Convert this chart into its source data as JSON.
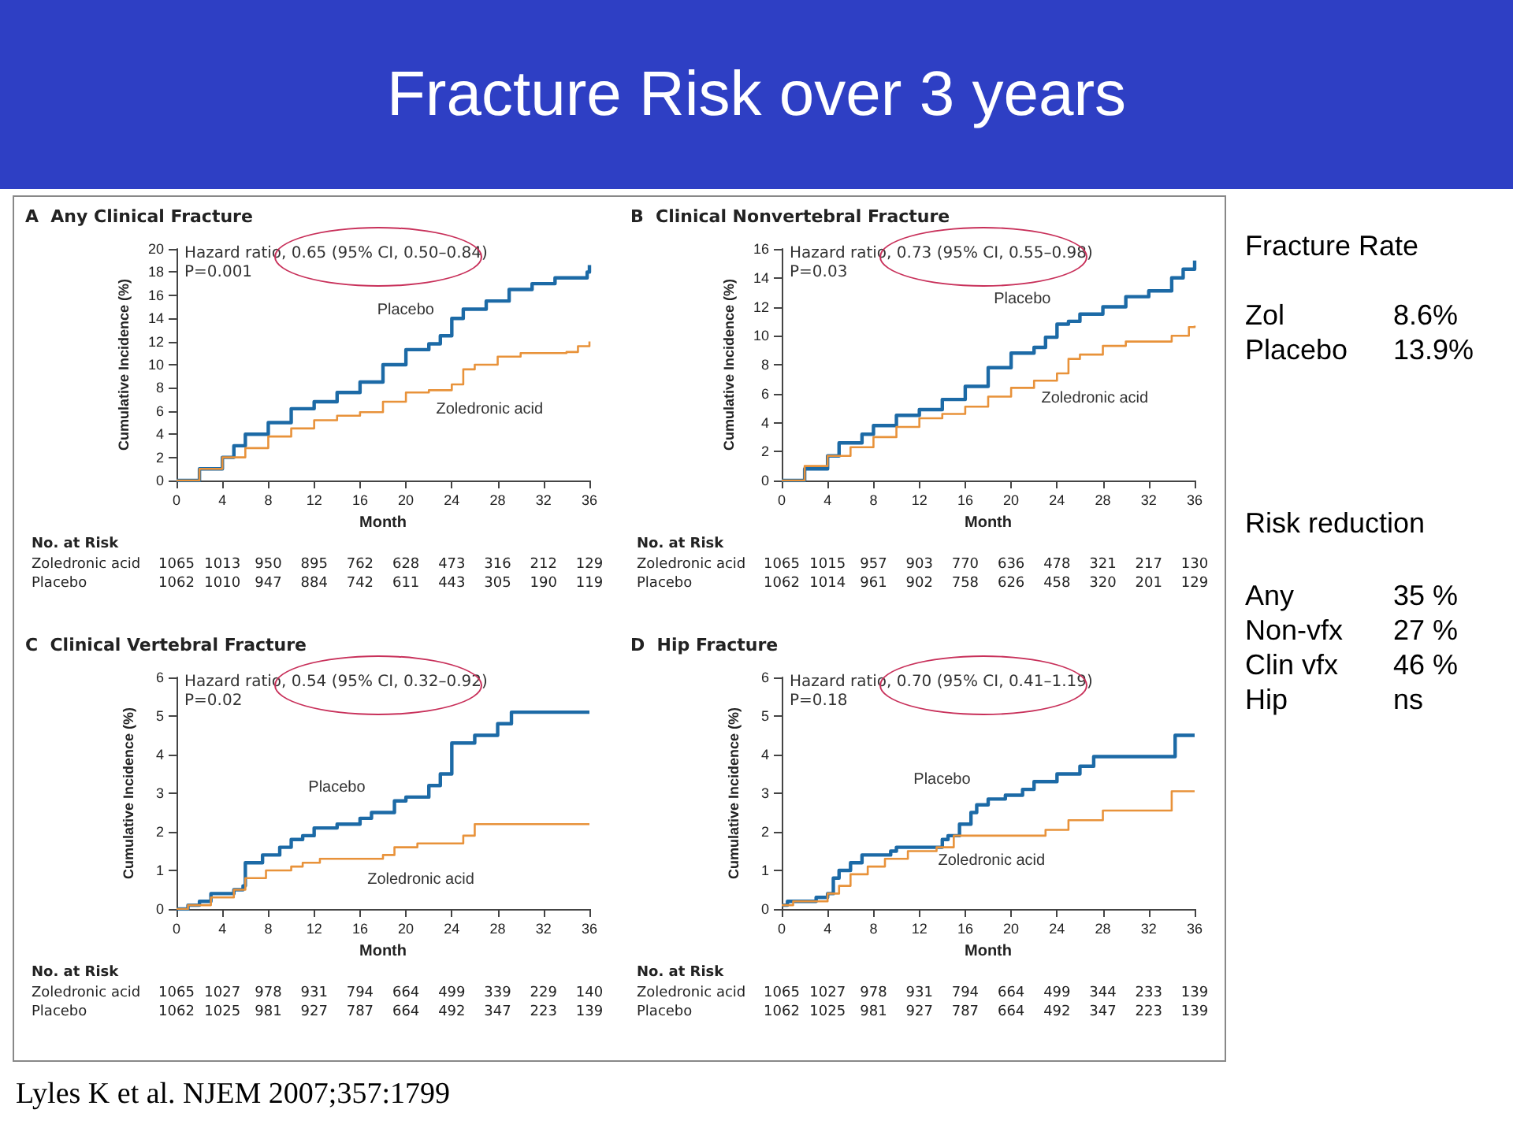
{
  "chart_data": [
    {
      "type": "step",
      "title": "A  Any Clinical Fracture",
      "xlabel": "Month",
      "ylabel": "Cumulative Incidence (%)",
      "xlim": [
        0,
        36
      ],
      "xticks": [
        0,
        4,
        8,
        12,
        16,
        20,
        24,
        28,
        32,
        36
      ],
      "ylim": [
        0,
        20
      ],
      "yticks": [
        0,
        2,
        4,
        6,
        8,
        10,
        12,
        14,
        16,
        18,
        20
      ],
      "annotations": [
        "Hazard ratio, 0.65 (95% CI, 0.50–0.84)",
        "P=0.001",
        "No. at Risk",
        "Zoledronic acid",
        "1065",
        "1013",
        "950",
        "895",
        "762",
        "628",
        "473",
        "316",
        "212",
        "129",
        "Placebo",
        "1062",
        "1010",
        "947",
        "884",
        "742",
        "611",
        "443",
        "305",
        "190",
        "119"
      ],
      "series": [
        {
          "name": "Placebo",
          "color": "#1c6aa6",
          "x": [
            0,
            2,
            4,
            5,
            6,
            8,
            10,
            12,
            14,
            16,
            18,
            20,
            22,
            23,
            24,
            25,
            27,
            29,
            31,
            33,
            35.8,
            36
          ],
          "values": [
            0,
            1,
            2,
            3,
            4,
            5,
            6.2,
            6.8,
            7.6,
            8.5,
            10,
            11.3,
            11.8,
            12.5,
            14,
            14.8,
            15.5,
            16.5,
            17,
            17.5,
            18,
            18.6
          ]
        },
        {
          "name": "Zoledronic acid",
          "color": "#e8923a",
          "x": [
            0,
            2,
            4,
            6,
            8,
            10,
            12,
            14,
            16,
            18,
            20,
            22,
            24,
            25,
            26,
            28,
            30,
            34,
            35,
            36
          ],
          "values": [
            0,
            1,
            2,
            2.8,
            3.8,
            4.5,
            5.2,
            5.6,
            5.9,
            6.8,
            7.6,
            7.8,
            8.3,
            9.6,
            10,
            10.7,
            11,
            11.1,
            11.6,
            12
          ]
        }
      ]
    },
    {
      "type": "step",
      "title": "B  Clinical Nonvertebral Fracture",
      "xlabel": "Month",
      "ylabel": "Cumulative Incidence (%)",
      "xlim": [
        0,
        36
      ],
      "xticks": [
        0,
        4,
        8,
        12,
        16,
        20,
        24,
        28,
        32,
        36
      ],
      "ylim": [
        0,
        16
      ],
      "yticks": [
        0,
        2,
        4,
        6,
        8,
        10,
        12,
        14,
        16
      ],
      "annotations": [
        "Hazard ratio, 0.73 (95% CI, 0.55–0.98)",
        "P=0.03",
        "No. at Risk",
        "Zoledronic acid",
        "1065",
        "1015",
        "957",
        "903",
        "770",
        "636",
        "478",
        "321",
        "217",
        "130",
        "Placebo",
        "1062",
        "1014",
        "961",
        "902",
        "758",
        "626",
        "458",
        "320",
        "201",
        "129"
      ],
      "series": [
        {
          "name": "Placebo",
          "color": "#1c6aa6",
          "x": [
            0,
            2,
            4,
            5,
            7,
            8,
            10,
            12,
            14,
            16,
            18,
            20,
            22,
            23,
            24,
            25,
            26,
            28,
            30,
            32,
            34,
            35,
            36
          ],
          "values": [
            0,
            0.8,
            1.7,
            2.6,
            3.2,
            3.8,
            4.5,
            4.9,
            5.6,
            6.5,
            7.8,
            8.8,
            9.2,
            9.9,
            10.8,
            11,
            11.5,
            12,
            12.7,
            13.1,
            14,
            14.6,
            15.2
          ]
        },
        {
          "name": "Zoledronic acid",
          "color": "#e8923a",
          "x": [
            0,
            2,
            4,
            6,
            8,
            10,
            12,
            14,
            16,
            18,
            20,
            22,
            24,
            25,
            26,
            28,
            30,
            34,
            35.5,
            36
          ],
          "values": [
            0,
            1,
            1.7,
            2.3,
            3,
            3.7,
            4.3,
            4.6,
            5.1,
            5.8,
            6.4,
            6.9,
            7.4,
            8.4,
            8.7,
            9.3,
            9.6,
            10,
            10.6,
            10.7
          ]
        }
      ]
    },
    {
      "type": "step",
      "title": "C  Clinical Vertebral Fracture",
      "xlabel": "Month",
      "ylabel": "Cumulative Incidence (%)",
      "xlim": [
        0,
        36
      ],
      "xticks": [
        0,
        4,
        8,
        12,
        16,
        20,
        24,
        28,
        32,
        36
      ],
      "ylim": [
        0,
        6
      ],
      "yticks": [
        0,
        1,
        2,
        3,
        4,
        5,
        6
      ],
      "annotations": [
        "Hazard ratio, 0.54 (95% CI, 0.32–0.92)",
        "P=0.02",
        "No. at Risk",
        "Zoledronic acid",
        "1065",
        "1027",
        "978",
        "931",
        "794",
        "664",
        "499",
        "339",
        "229",
        "140",
        "Placebo",
        "1062",
        "1025",
        "981",
        "927",
        "787",
        "664",
        "492",
        "347",
        "223",
        "139"
      ],
      "series": [
        {
          "name": "Placebo",
          "color": "#1c6aa6",
          "x": [
            0,
            1,
            2,
            3,
            5,
            5.8,
            6,
            7.5,
            9,
            10,
            11,
            12,
            14,
            16,
            17,
            19,
            20,
            22,
            23,
            24,
            26,
            28,
            29.2,
            36
          ],
          "values": [
            0,
            0.1,
            0.2,
            0.4,
            0.5,
            0.6,
            1.2,
            1.4,
            1.6,
            1.8,
            1.9,
            2.1,
            2.2,
            2.35,
            2.5,
            2.8,
            2.9,
            3.2,
            3.5,
            4.3,
            4.5,
            4.8,
            5.1,
            5.1
          ]
        },
        {
          "name": "Zoledronic acid",
          "color": "#e8923a",
          "x": [
            0,
            1,
            3,
            5,
            6,
            7.8,
            10,
            11,
            12.5,
            18,
            19,
            21,
            25,
            26,
            36
          ],
          "values": [
            0,
            0.1,
            0.3,
            0.5,
            0.8,
            1,
            1.1,
            1.2,
            1.3,
            1.4,
            1.6,
            1.7,
            1.9,
            2.2,
            2.2
          ]
        }
      ]
    },
    {
      "type": "step",
      "title": "D  Hip Fracture",
      "xlabel": "Month",
      "ylabel": "Cumulative Incidence (%)",
      "xlim": [
        0,
        36
      ],
      "xticks": [
        0,
        4,
        8,
        12,
        16,
        20,
        24,
        28,
        32,
        36
      ],
      "ylim": [
        0,
        6
      ],
      "yticks": [
        0,
        1,
        2,
        3,
        4,
        5,
        6
      ],
      "annotations": [
        "Hazard ratio, 0.70 (95% CI, 0.41–1.19)",
        "P=0.18",
        "No. at Risk",
        "Zoledronic acid",
        "1065",
        "1027",
        "978",
        "931",
        "794",
        "664",
        "499",
        "344",
        "233",
        "139",
        "Placebo",
        "1062",
        "1025",
        "981",
        "927",
        "787",
        "664",
        "492",
        "347",
        "223",
        "139"
      ],
      "series": [
        {
          "name": "Placebo",
          "color": "#1c6aa6",
          "x": [
            0,
            0.5,
            3,
            4,
            4.5,
            5,
            6,
            7,
            9.5,
            10,
            14,
            14.5,
            15.5,
            16.5,
            17,
            18,
            19.5,
            21,
            22,
            24,
            26,
            27.2,
            34.3,
            36
          ],
          "values": [
            0.1,
            0.2,
            0.3,
            0.4,
            0.8,
            1,
            1.2,
            1.4,
            1.5,
            1.6,
            1.8,
            1.9,
            2.2,
            2.5,
            2.7,
            2.85,
            2.95,
            3.1,
            3.3,
            3.5,
            3.7,
            3.95,
            4.5,
            4.5
          ]
        },
        {
          "name": "Zoledronic acid",
          "color": "#e8923a",
          "x": [
            0,
            1,
            4,
            5,
            6,
            7.5,
            9,
            11,
            13.5,
            15,
            23,
            25,
            28,
            34,
            36
          ],
          "values": [
            0.1,
            0.2,
            0.4,
            0.6,
            0.9,
            1.1,
            1.3,
            1.5,
            1.6,
            1.9,
            2.05,
            2.3,
            2.55,
            3.05,
            3.05
          ]
        }
      ]
    },
    {
      "type": "other",
      "title": "Fracture Risk over 3 years",
      "annotations": [
        "Fracture Rate",
        "Zol",
        "8.6%",
        "Placebo",
        "13.9%",
        "Risk reduction",
        "Any",
        "35 %",
        "Non-vfx",
        "27 %",
        "Clin vfx",
        "46 %",
        "Hip",
        "ns",
        "Lyles K et al. NJEM 2007;357:1799"
      ]
    }
  ]
}
